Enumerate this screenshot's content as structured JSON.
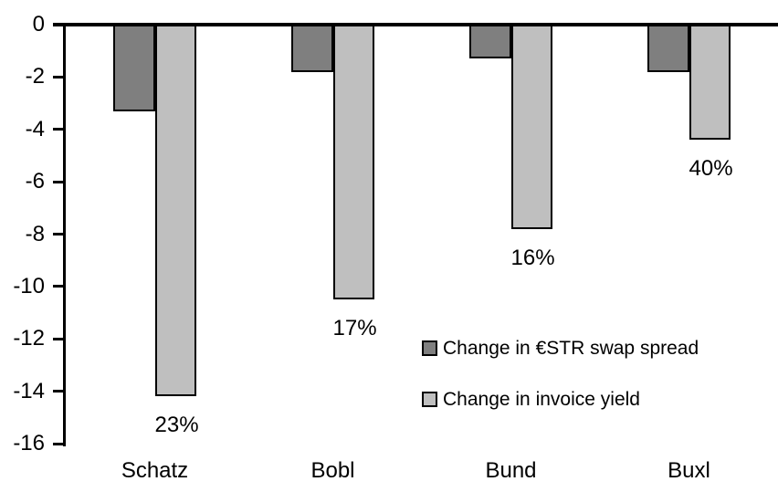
{
  "chart_data": {
    "type": "bar",
    "title": "",
    "orientation": "vertical-negative",
    "categories": [
      "Schatz",
      "Bobl",
      "Bund",
      "Buxl"
    ],
    "series": [
      {
        "name": "Change in €STR swap spread",
        "color": "#7F7F7F",
        "values": [
          -3.3,
          -1.8,
          -1.3,
          -1.8
        ]
      },
      {
        "name": "Change in invoice yield",
        "color": "#BFBFBF",
        "values": [
          -14.2,
          -10.5,
          -7.8,
          -4.4
        ],
        "data_labels": [
          "23%",
          "17%",
          "16%",
          "40%"
        ]
      }
    ],
    "xlabel": "",
    "ylabel": "",
    "ylim": [
      -16,
      0
    ],
    "yticks": [
      0,
      -2,
      -4,
      -6,
      -8,
      -10,
      -12,
      -14,
      -16
    ],
    "grid": false,
    "legend_position": "inside-center-right",
    "bar_border_color": "#000000",
    "axis_color": "#000000",
    "background_color": "#FFFFFF"
  }
}
